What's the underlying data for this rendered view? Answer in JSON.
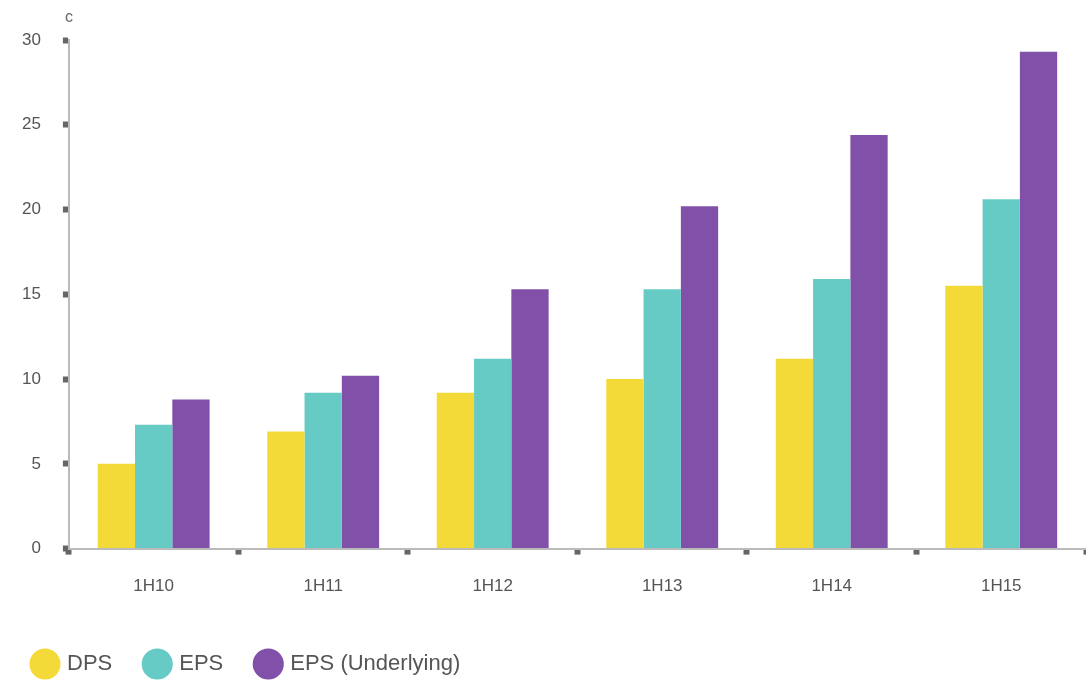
{
  "chart_data": {
    "type": "bar",
    "ylabel": "c",
    "categories": [
      "1H10",
      "1H11",
      "1H12",
      "1H13",
      "1H14",
      "1H15"
    ],
    "series": [
      {
        "name": "DPS",
        "color": "#f4da38",
        "values": [
          5.0,
          6.9,
          9.2,
          10.0,
          11.2,
          15.5
        ]
      },
      {
        "name": "EPS",
        "color": "#66cbc4",
        "values": [
          7.3,
          9.2,
          11.2,
          15.3,
          15.9,
          20.6
        ]
      },
      {
        "name": "EPS (Underlying)",
        "color": "#8150a8",
        "values": [
          8.8,
          10.2,
          15.3,
          20.2,
          24.4,
          29.3
        ]
      }
    ],
    "ylim": [
      0,
      30
    ],
    "yticks": [
      0,
      5,
      10,
      15,
      20,
      25,
      30
    ],
    "grid": false,
    "legend": "bottom left"
  }
}
